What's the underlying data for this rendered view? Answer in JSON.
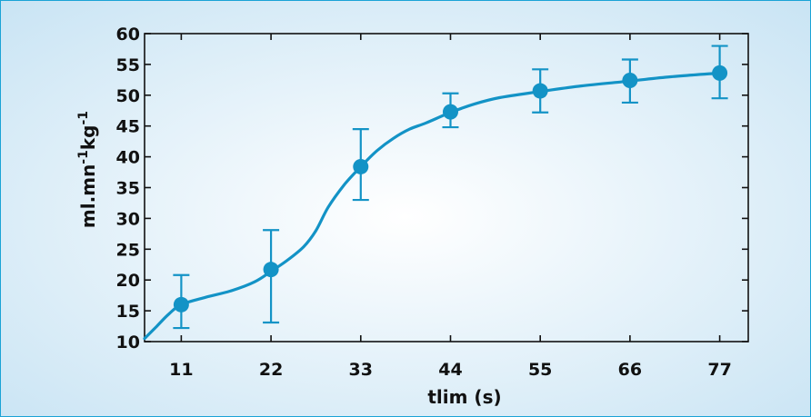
{
  "chart_data": {
    "type": "line",
    "title": "",
    "xlabel": "tlim (s)",
    "ylabel": {
      "parts": [
        {
          "text": "ml.mn",
          "sup": false
        },
        {
          "text": "-1",
          "sup": true
        },
        {
          "text": "kg",
          "sup": false
        },
        {
          "text": "-1",
          "sup": true
        }
      ]
    },
    "xlim": [
      6.5,
      80.5
    ],
    "ylim": [
      10,
      60
    ],
    "x_ticks": [
      11,
      22,
      33,
      44,
      55,
      66,
      77
    ],
    "x_tick_labels": [
      "11",
      "22",
      "33",
      "44",
      "55",
      "66",
      "77"
    ],
    "y_ticks": [
      10,
      15,
      20,
      25,
      30,
      35,
      40,
      45,
      50,
      55,
      60
    ],
    "y_tick_labels": [
      "10",
      "15",
      "20",
      "25",
      "30",
      "35",
      "40",
      "45",
      "50",
      "55",
      "60"
    ],
    "grid": false,
    "series": [
      {
        "marker": "circle",
        "error_bars": true,
        "points": [
          {
            "x": 11,
            "y": 16.0,
            "err_low": 12.2,
            "err_high": 20.8
          },
          {
            "x": 22,
            "y": 21.7,
            "err_low": 13.1,
            "err_high": 28.1
          },
          {
            "x": 33,
            "y": 38.4,
            "err_low": 33.0,
            "err_high": 44.5
          },
          {
            "x": 44,
            "y": 47.3,
            "err_low": 44.8,
            "err_high": 50.3
          },
          {
            "x": 55,
            "y": 50.7,
            "err_low": 47.2,
            "err_high": 54.2
          },
          {
            "x": 66,
            "y": 52.4,
            "err_low": 48.8,
            "err_high": 55.8
          },
          {
            "x": 77,
            "y": 53.6,
            "err_low": 49.5,
            "err_high": 58.0
          }
        ]
      }
    ],
    "fit_curve": [
      [
        6.5,
        10.5
      ],
      [
        8,
        12.5
      ],
      [
        9.5,
        14.5
      ],
      [
        11,
        16.0
      ],
      [
        14,
        17.2
      ],
      [
        17,
        18.2
      ],
      [
        20,
        19.7
      ],
      [
        22,
        21.4
      ],
      [
        24,
        23.2
      ],
      [
        26,
        25.4
      ],
      [
        27.5,
        28.0
      ],
      [
        29,
        31.8
      ],
      [
        31,
        35.5
      ],
      [
        33,
        38.4
      ],
      [
        35,
        41.0
      ],
      [
        37,
        43.0
      ],
      [
        39,
        44.5
      ],
      [
        41,
        45.5
      ],
      [
        44,
        47.2
      ],
      [
        47,
        48.6
      ],
      [
        50,
        49.6
      ],
      [
        55,
        50.6
      ],
      [
        60,
        51.5
      ],
      [
        66,
        52.3
      ],
      [
        71,
        53.0
      ],
      [
        77,
        53.6
      ]
    ],
    "colors": {
      "series": "#1393c6",
      "axis": "#111111",
      "background_center": "#ffffff",
      "background_edge": "#c9e4f4",
      "border": "#1aa3d6"
    }
  }
}
